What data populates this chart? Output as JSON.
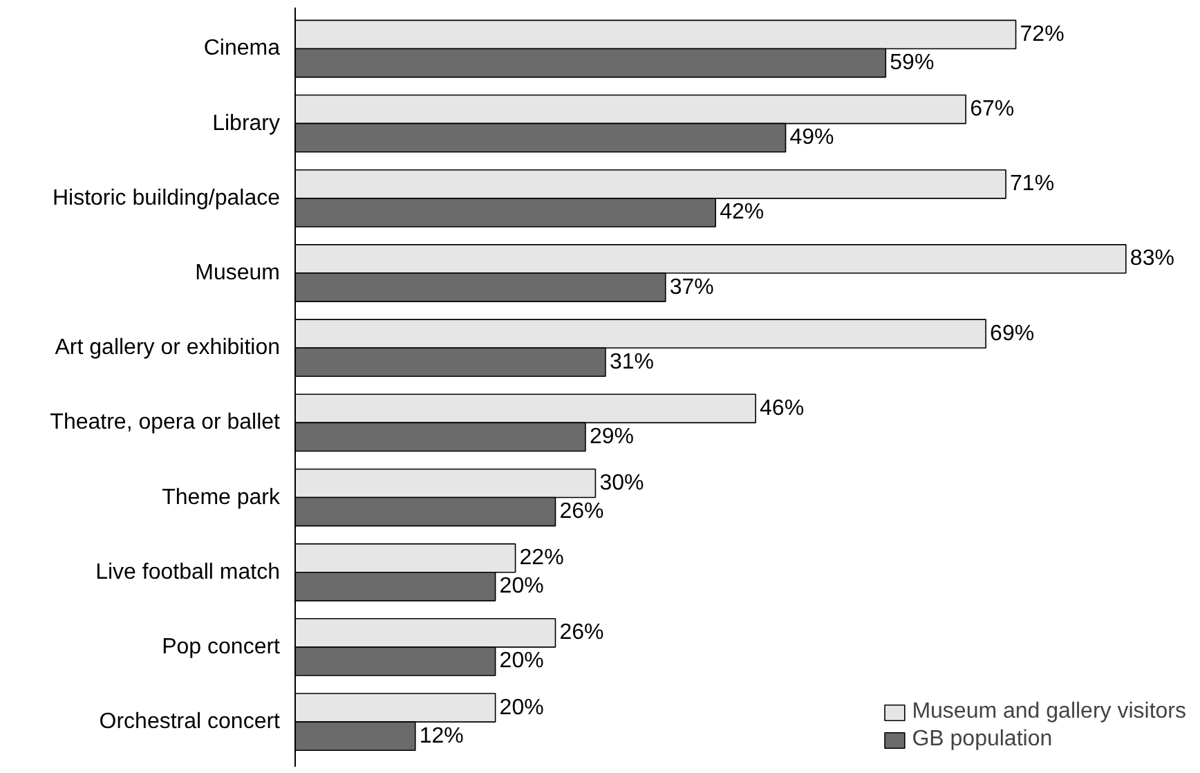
{
  "chart_data": {
    "type": "bar",
    "orientation": "horizontal",
    "categories": [
      "Cinema",
      "Library",
      "Historic building/palace",
      "Museum",
      "Art gallery or exhibition",
      "Theatre, opera or ballet",
      "Theme park",
      "Live football match",
      "Pop concert",
      "Orchestral concert"
    ],
    "series": [
      {
        "name": "Museum and gallery visitors",
        "color": "#e6e6e6",
        "values": [
          72,
          67,
          71,
          83,
          69,
          46,
          30,
          22,
          26,
          20
        ],
        "value_labels": [
          "72%",
          "67%",
          "71%",
          "83%",
          "69%",
          "46%",
          "30%",
          "22%",
          "26%",
          "20%"
        ]
      },
      {
        "name": "GB population",
        "color": "#6b6b6b",
        "values": [
          59,
          49,
          42,
          37,
          31,
          29,
          26,
          20,
          20,
          12
        ],
        "value_labels": [
          "59%",
          "49%",
          "42%",
          "37%",
          "31%",
          "29%",
          "26%",
          "20%",
          "20%",
          "12%"
        ]
      }
    ],
    "legend": "bottom right",
    "grid": false
  }
}
